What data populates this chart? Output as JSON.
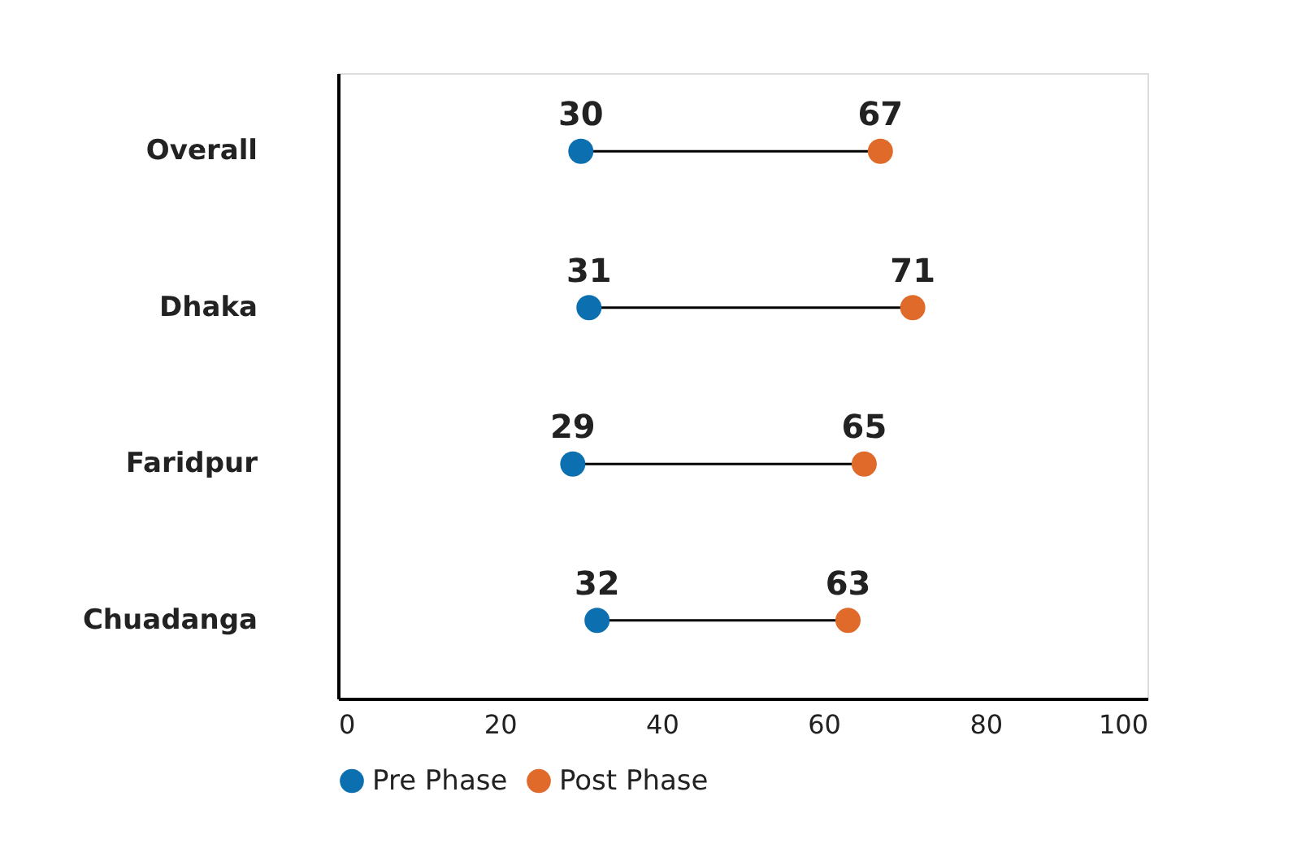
{
  "chart_data": {
    "type": "scatter",
    "orientation": "horizontal",
    "categories": [
      "Overall",
      "Dhaka",
      "Faridpur",
      "Chuadanga"
    ],
    "series": [
      {
        "name": "Pre Phase",
        "color": "#0b6fb0",
        "values": [
          30,
          31,
          29,
          32
        ]
      },
      {
        "name": "Post Phase",
        "color": "#e06a2a",
        "values": [
          67,
          71,
          65,
          63
        ]
      }
    ],
    "xlim": [
      0,
      100
    ],
    "xticks": [
      0,
      20,
      40,
      60,
      80,
      100
    ],
    "data_labels": true,
    "legend": "bottom",
    "grid": false,
    "marker": "circle"
  }
}
